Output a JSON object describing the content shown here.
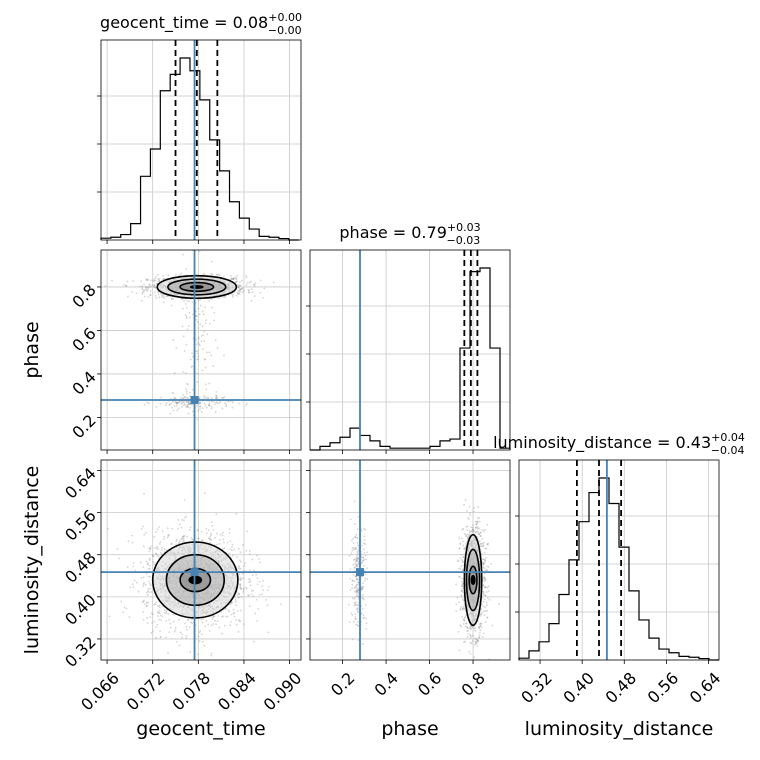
{
  "colors": {
    "truth": "#4682b4",
    "hist": "#000000",
    "grid": "#c8c8c8",
    "quantile": "#000000"
  },
  "chart_data": {
    "type": "corner",
    "parameters": [
      {
        "key": "geocent_time",
        "label": "geocent_time",
        "range": [
          0.0652,
          0.0915
        ],
        "ticks": [
          "0.066",
          "0.072",
          "0.078",
          "0.084",
          "0.090"
        ],
        "tick_values": [
          0.066,
          0.072,
          0.078,
          0.084,
          0.09
        ],
        "title_main": "geocent_time = 0.08",
        "title_sup": "+0.00",
        "title_sub": "−0.00",
        "truth": 0.0775,
        "quantiles": [
          0.075,
          0.0778,
          0.0805
        ]
      },
      {
        "key": "phase",
        "label": "phase",
        "range": [
          0.05,
          0.97
        ],
        "ticks": [
          "0.2",
          "0.4",
          "0.6",
          "0.8"
        ],
        "tick_values": [
          0.2,
          0.4,
          0.6,
          0.8
        ],
        "title_main": "phase = 0.79",
        "title_sup": "+0.03",
        "title_sub": "−0.03",
        "truth": 0.28,
        "quantiles": [
          0.76,
          0.79,
          0.82
        ]
      },
      {
        "key": "luminosity_distance",
        "label": "luminosity_distance",
        "range": [
          0.28,
          0.66
        ],
        "ticks": [
          "0.32",
          "0.40",
          "0.48",
          "0.56",
          "0.64"
        ],
        "tick_values": [
          0.32,
          0.4,
          0.48,
          0.56,
          0.64
        ],
        "title_main": "luminosity_distance = 0.43",
        "title_sup": "+0.04",
        "title_sub": "−0.04",
        "truth": 0.447,
        "quantiles": [
          0.39,
          0.432,
          0.474
        ]
      }
    ],
    "histograms": {
      "geocent_time": {
        "edges": [
          0.0652,
          0.0665,
          0.0678,
          0.0691,
          0.0704,
          0.0717,
          0.073,
          0.0743,
          0.0756,
          0.0769,
          0.0782,
          0.0795,
          0.0808,
          0.0821,
          0.0834,
          0.0847,
          0.086,
          0.0873,
          0.0886,
          0.0899,
          0.0912
        ],
        "counts": [
          0.01,
          0.015,
          0.03,
          0.09,
          0.35,
          0.5,
          0.82,
          0.91,
          1.0,
          0.93,
          0.77,
          0.55,
          0.38,
          0.21,
          0.12,
          0.06,
          0.02,
          0.015,
          0.008,
          0.0
        ]
      },
      "phase": {
        "edges": [
          0.05,
          0.096,
          0.142,
          0.188,
          0.234,
          0.28,
          0.326,
          0.372,
          0.418,
          0.464,
          0.51,
          0.556,
          0.602,
          0.648,
          0.694,
          0.74,
          0.786,
          0.832,
          0.878,
          0.924,
          0.97
        ],
        "counts": [
          0.0,
          0.02,
          0.04,
          0.07,
          0.12,
          0.08,
          0.05,
          0.02,
          0.01,
          0.01,
          0.01,
          0.01,
          0.02,
          0.05,
          0.06,
          0.56,
          0.98,
          1.0,
          0.56,
          0.01
        ]
      },
      "luminosity_distance": {
        "edges": [
          0.28,
          0.299,
          0.318,
          0.337,
          0.356,
          0.375,
          0.394,
          0.413,
          0.432,
          0.451,
          0.47,
          0.489,
          0.508,
          0.527,
          0.546,
          0.565,
          0.584,
          0.603,
          0.622,
          0.641,
          0.66
        ],
        "counts": [
          0.01,
          0.05,
          0.1,
          0.2,
          0.36,
          0.55,
          0.76,
          0.92,
          1.0,
          0.86,
          0.62,
          0.38,
          0.22,
          0.12,
          0.06,
          0.04,
          0.02,
          0.015,
          0.008,
          0.0
        ]
      }
    },
    "scatter": {
      "phase_vs_geocent_time": {
        "clusters": [
          {
            "cx": 0.0778,
            "cy": 0.8,
            "sx": 0.0032,
            "sy": 0.025,
            "n": 1100
          },
          {
            "cx": 0.0775,
            "cy": 0.27,
            "sx": 0.0025,
            "sy": 0.018,
            "n": 180
          },
          {
            "cx": 0.0778,
            "cy": 0.55,
            "sx": 0.0012,
            "sy": 0.16,
            "n": 110
          }
        ],
        "contours": [
          {
            "cx": 0.0778,
            "cy": 0.8,
            "rx": 0.0008,
            "ry": 0.005
          },
          {
            "cx": 0.0778,
            "cy": 0.8,
            "rx": 0.0022,
            "ry": 0.02
          },
          {
            "cx": 0.0778,
            "cy": 0.8,
            "rx": 0.0038,
            "ry": 0.036
          },
          {
            "cx": 0.0778,
            "cy": 0.8,
            "rx": 0.0052,
            "ry": 0.052
          }
        ]
      },
      "luminosity_distance_vs_geocent_time": {
        "clusters": [
          {
            "cx": 0.0776,
            "cy": 0.432,
            "sx": 0.0034,
            "sy": 0.046,
            "n": 1600
          }
        ],
        "contours": [
          {
            "cx": 0.0776,
            "cy": 0.432,
            "rx": 0.0008,
            "ry": 0.007
          },
          {
            "cx": 0.0776,
            "cy": 0.432,
            "rx": 0.002,
            "ry": 0.022
          },
          {
            "cx": 0.0776,
            "cy": 0.432,
            "rx": 0.0038,
            "ry": 0.048
          },
          {
            "cx": 0.0776,
            "cy": 0.432,
            "rx": 0.0056,
            "ry": 0.072
          }
        ]
      },
      "luminosity_distance_vs_phase": {
        "clusters": [
          {
            "cx": 0.8,
            "cy": 0.432,
            "sx": 0.028,
            "sy": 0.05,
            "n": 1200
          },
          {
            "cx": 0.275,
            "cy": 0.44,
            "sx": 0.018,
            "sy": 0.05,
            "n": 260
          }
        ],
        "contours": [
          {
            "cx": 0.8,
            "cy": 0.432,
            "rx": 0.008,
            "ry": 0.008
          },
          {
            "cx": 0.8,
            "cy": 0.432,
            "rx": 0.018,
            "ry": 0.026
          },
          {
            "cx": 0.8,
            "cy": 0.432,
            "rx": 0.03,
            "ry": 0.058
          },
          {
            "cx": 0.8,
            "cy": 0.432,
            "rx": 0.04,
            "ry": 0.086
          }
        ]
      }
    },
    "grid": true
  }
}
